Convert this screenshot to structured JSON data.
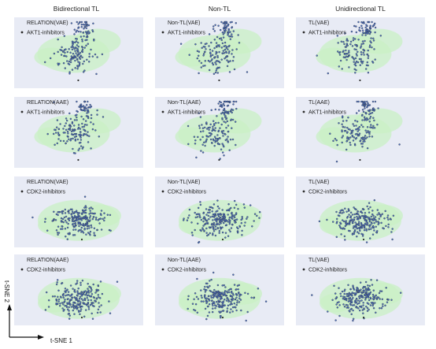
{
  "figure": {
    "column_titles": [
      "Bidirectional TL",
      "Non-TL",
      "Unidirectional TL"
    ],
    "xlabel": "t-SNE 1",
    "ylabel": "t-SNE 2"
  },
  "colors": {
    "panel_bg": "#e8ebf5",
    "density": "#c9f0c4",
    "points": "#4a6fc2",
    "outline": "#2b2b2b"
  },
  "chart_data": [
    {
      "type": "scatter",
      "row": 0,
      "col": 0,
      "panel_label": "RELATION(VAE)",
      "legend": [
        "AKT1-inhibitors"
      ],
      "shape": "akt"
    },
    {
      "type": "scatter",
      "row": 0,
      "col": 1,
      "panel_label": "Non-TL(VAE)",
      "legend": [
        "AKT1-inhibitors"
      ],
      "shape": "akt"
    },
    {
      "type": "scatter",
      "row": 0,
      "col": 2,
      "panel_label": "TL(VAE)",
      "legend": [
        "AKT1-inhibitors"
      ],
      "shape": "akt"
    },
    {
      "type": "scatter",
      "row": 1,
      "col": 0,
      "panel_label": "RELATION(AAE)",
      "legend": [
        "AKT1-inhibitors"
      ],
      "shape": "akt"
    },
    {
      "type": "scatter",
      "row": 1,
      "col": 1,
      "panel_label": "Non-TL(AAE)",
      "legend": [
        "AKT1-inhibitors"
      ],
      "shape": "akt"
    },
    {
      "type": "scatter",
      "row": 1,
      "col": 2,
      "panel_label": "TL(AAE)",
      "legend": [
        "AKT1-inhibitors"
      ],
      "shape": "akt"
    },
    {
      "type": "scatter",
      "row": 2,
      "col": 0,
      "panel_label": "RELATION(VAE)",
      "legend": [
        "CDK2-inhibitors"
      ],
      "shape": "cdk"
    },
    {
      "type": "scatter",
      "row": 2,
      "col": 1,
      "panel_label": "Non-TL(VAE)",
      "legend": [
        "CDK2-inhibitors"
      ],
      "shape": "cdk"
    },
    {
      "type": "scatter",
      "row": 2,
      "col": 2,
      "panel_label": "TL(VAE)",
      "legend": [
        "CDK2-inhibitors"
      ],
      "shape": "cdk"
    },
    {
      "type": "scatter",
      "row": 3,
      "col": 0,
      "panel_label": "RELATION(AAE)",
      "legend": [
        "CDK2-inhibitors"
      ],
      "shape": "cdk"
    },
    {
      "type": "scatter",
      "row": 3,
      "col": 1,
      "panel_label": "Non-TL(AAE)",
      "legend": [
        "CDK2-inhibitors"
      ],
      "shape": "cdk"
    },
    {
      "type": "scatter",
      "row": 3,
      "col": 2,
      "panel_label": "TL(VAE)",
      "legend": [
        "CDK2-inhibitors"
      ],
      "shape": "cdk"
    }
  ]
}
